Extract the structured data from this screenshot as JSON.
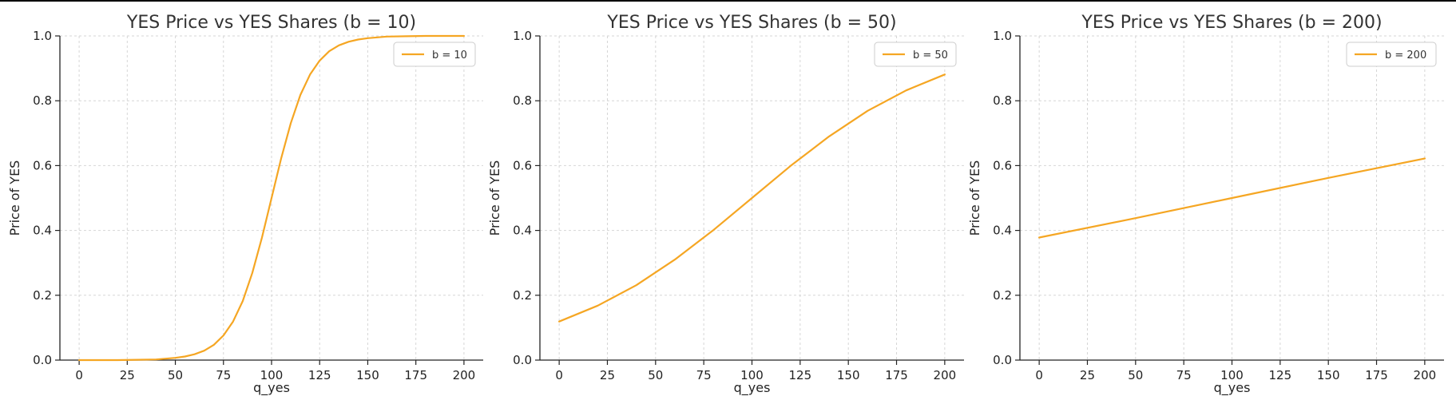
{
  "line_color": "#f5a623",
  "grid_color": "#d6d6d6",
  "chart_data": [
    {
      "type": "line",
      "title": "YES Price vs YES Shares (b = 10)",
      "xlabel": "q_yes",
      "ylabel": "Price of YES",
      "xlim": [
        -10,
        210
      ],
      "ylim": [
        0,
        1
      ],
      "xticks": [
        0,
        25,
        50,
        75,
        100,
        125,
        150,
        175,
        200
      ],
      "yticks": [
        0.0,
        0.2,
        0.4,
        0.6,
        0.8,
        1.0
      ],
      "xtick_labels": [
        "0",
        "25",
        "50",
        "75",
        "100",
        "125",
        "150",
        "175",
        "200"
      ],
      "ytick_labels": [
        "0.0",
        "0.2",
        "0.4",
        "0.6",
        "0.8",
        "1.0"
      ],
      "grid": true,
      "legend_position": "top-right",
      "series": [
        {
          "name": "b = 10",
          "x": [
            0,
            10,
            20,
            30,
            40,
            50,
            55,
            60,
            65,
            70,
            75,
            80,
            85,
            90,
            95,
            100,
            105,
            110,
            115,
            120,
            125,
            130,
            135,
            140,
            145,
            150,
            160,
            170,
            180,
            190,
            200
          ],
          "y": [
            0.0,
            0.0,
            0.0,
            0.001,
            0.002,
            0.007,
            0.011,
            0.018,
            0.029,
            0.047,
            0.076,
            0.119,
            0.182,
            0.269,
            0.378,
            0.5,
            0.622,
            0.731,
            0.818,
            0.881,
            0.924,
            0.953,
            0.971,
            0.982,
            0.989,
            0.993,
            0.998,
            0.999,
            1.0,
            1.0,
            1.0
          ]
        }
      ]
    },
    {
      "type": "line",
      "title": "YES Price vs YES Shares (b = 50)",
      "xlabel": "q_yes",
      "ylabel": "Price of YES",
      "xlim": [
        -10,
        210
      ],
      "ylim": [
        0,
        1
      ],
      "xticks": [
        0,
        25,
        50,
        75,
        100,
        125,
        150,
        175,
        200
      ],
      "yticks": [
        0.0,
        0.2,
        0.4,
        0.6,
        0.8,
        1.0
      ],
      "xtick_labels": [
        "0",
        "25",
        "50",
        "75",
        "100",
        "125",
        "150",
        "175",
        "200"
      ],
      "ytick_labels": [
        "0.0",
        "0.2",
        "0.4",
        "0.6",
        "0.8",
        "1.0"
      ],
      "grid": true,
      "legend_position": "top-right",
      "series": [
        {
          "name": "b = 50",
          "x": [
            0,
            20,
            40,
            60,
            80,
            100,
            120,
            140,
            160,
            180,
            200
          ],
          "y": [
            0.119,
            0.168,
            0.231,
            0.31,
            0.401,
            0.5,
            0.599,
            0.69,
            0.769,
            0.832,
            0.881
          ]
        }
      ]
    },
    {
      "type": "line",
      "title": "YES Price vs YES Shares (b = 200)",
      "xlabel": "q_yes",
      "ylabel": "Price of YES",
      "xlim": [
        -10,
        210
      ],
      "ylim": [
        0,
        1
      ],
      "xticks": [
        0,
        25,
        50,
        75,
        100,
        125,
        150,
        175,
        200
      ],
      "yticks": [
        0.0,
        0.2,
        0.4,
        0.6,
        0.8,
        1.0
      ],
      "xtick_labels": [
        "0",
        "25",
        "50",
        "75",
        "100",
        "125",
        "150",
        "175",
        "200"
      ],
      "ytick_labels": [
        "0.0",
        "0.2",
        "0.4",
        "0.6",
        "0.8",
        "1.0"
      ],
      "grid": true,
      "legend_position": "top-right",
      "series": [
        {
          "name": "b = 200",
          "x": [
            0,
            50,
            100,
            150,
            200
          ],
          "y": [
            0.378,
            0.438,
            0.5,
            0.562,
            0.622
          ]
        }
      ]
    }
  ]
}
